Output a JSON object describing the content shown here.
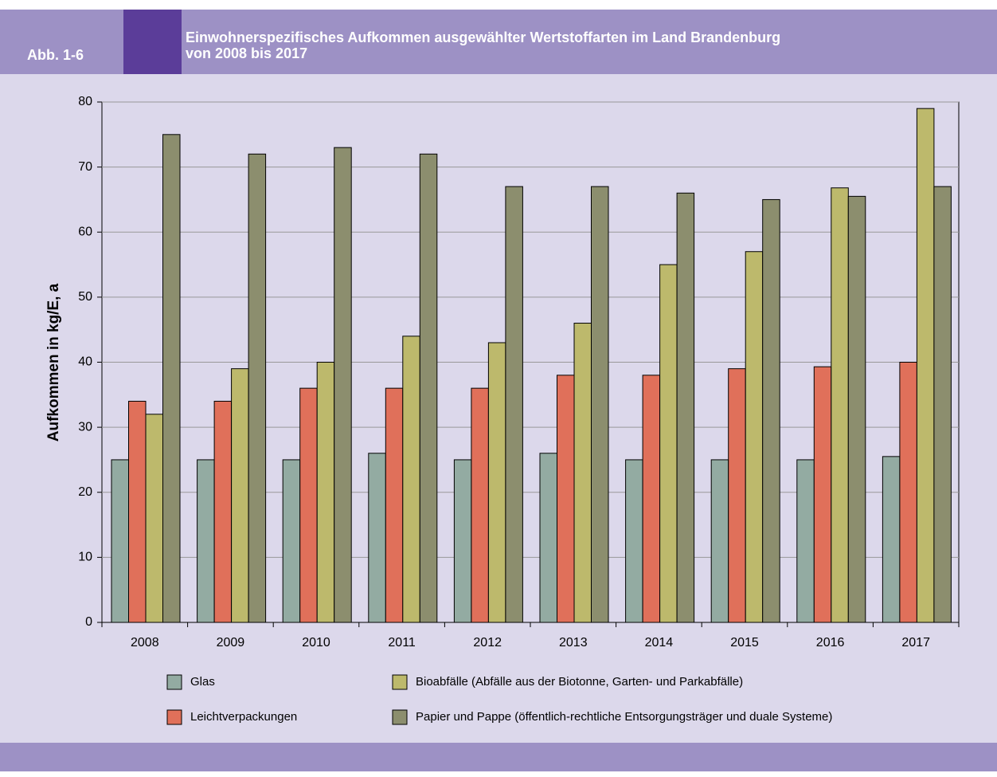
{
  "chart_data": {
    "type": "bar",
    "figure_label": "Abb. 1-6",
    "title": [
      "Einwohnerspezifisches Aufkommen ausgewählter Wertstoffarten im Land Brandenburg",
      "von 2008 bis 2017"
    ],
    "y_label": "Aufkommen in kg/E, a",
    "categories": [
      "2008",
      "2009",
      "2010",
      "2011",
      "2012",
      "2013",
      "2014",
      "2015",
      "2016",
      "2017"
    ],
    "series": [
      {
        "name": "Glas",
        "color": "#93aba2",
        "values": [
          25,
          25,
          25,
          26,
          25,
          26,
          25,
          25,
          25,
          25.5
        ]
      },
      {
        "name": "Leichtverpackungen",
        "color": "#e0705a",
        "values": [
          34,
          34,
          36,
          36,
          36,
          38,
          38,
          39,
          39.3,
          40
        ]
      },
      {
        "name": "Bioabfälle (Abfälle aus der Biotonne, Garten- und Parkabfälle)",
        "color": "#bdb96c",
        "values": [
          32,
          39,
          40,
          44,
          43,
          46,
          55,
          57,
          66.8,
          79
        ]
      },
      {
        "name": "Papier und Pappe (öffentlich-rechtliche Entsorgungsträger  und duale Systeme)",
        "color": "#8c8e6e",
        "values": [
          75,
          72,
          73,
          72,
          67,
          67,
          66,
          65,
          65.5,
          67
        ]
      }
    ],
    "ylim": [
      0,
      80
    ],
    "yticks": [
      0,
      10,
      20,
      30,
      40,
      50,
      60,
      70,
      80
    ],
    "grid": true
  }
}
